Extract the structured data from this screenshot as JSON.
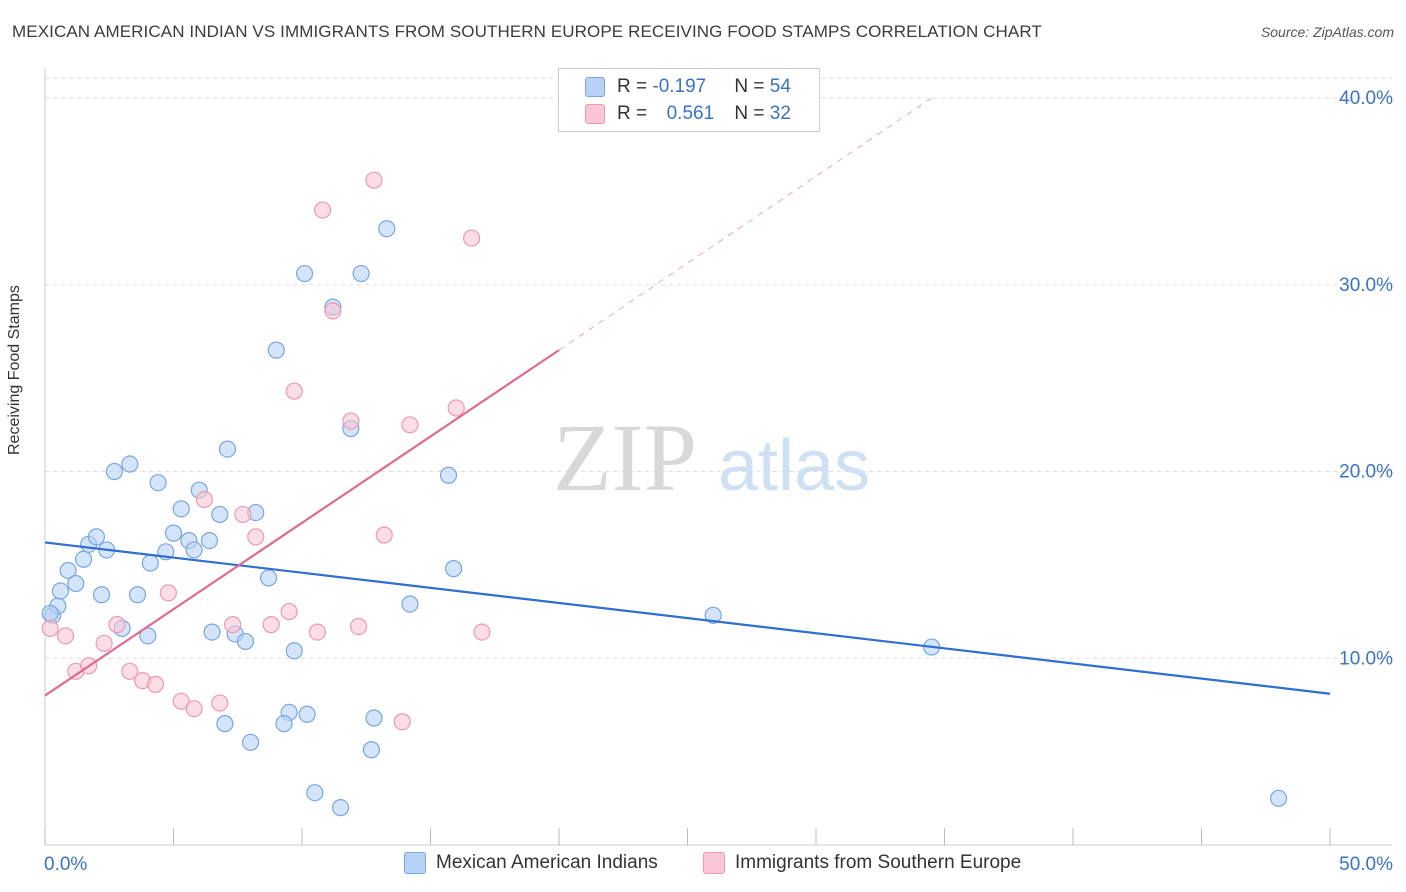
{
  "title": "MEXICAN AMERICAN INDIAN VS IMMIGRANTS FROM SOUTHERN EUROPE RECEIVING FOOD STAMPS CORRELATION CHART",
  "source": "Source: ZipAtlas.com",
  "watermark": {
    "zip": "ZIP",
    "atlas": "atlas"
  },
  "legend": {
    "series1": {
      "r_label": "R = ",
      "r_value": "-0.197",
      "n_label": "N = ",
      "n_value": "54"
    },
    "series2": {
      "r_label": "R = ",
      "r_value": "0.561",
      "n_label": "N = ",
      "n_value": "32"
    }
  },
  "colors": {
    "blue_fill": "#b8d2f5",
    "blue_stroke": "#7aa6e0",
    "blue_line": "#2f6fcf",
    "pink_fill": "#f8c6d4",
    "pink_stroke": "#ec9ab2",
    "pink_line": "#e06a92",
    "grid": "#dddddd",
    "tick_label": "#3a73c8"
  },
  "chart_data": {
    "type": "scatter",
    "xlabel": "",
    "ylabel": "Receiving Food Stamps",
    "xlim": [
      0,
      50
    ],
    "ylim": [
      0,
      40
    ],
    "x_tick_labels": [
      "0.0%",
      "50.0%"
    ],
    "y_ticks": [
      10,
      20,
      30,
      40
    ],
    "y_tick_labels": [
      "10.0%",
      "20.0%",
      "30.0%",
      "40.0%"
    ],
    "series": [
      {
        "name": "Mexican American Indians",
        "color": "blue",
        "points": [
          [
            0.3,
            12.3
          ],
          [
            0.5,
            12.8
          ],
          [
            0.6,
            13.6
          ],
          [
            0.9,
            14.7
          ],
          [
            1.2,
            14.0
          ],
          [
            1.5,
            15.3
          ],
          [
            1.7,
            16.1
          ],
          [
            2.0,
            16.5
          ],
          [
            2.2,
            13.4
          ],
          [
            2.4,
            15.8
          ],
          [
            2.7,
            20.0
          ],
          [
            3.0,
            11.6
          ],
          [
            3.3,
            20.4
          ],
          [
            3.6,
            13.4
          ],
          [
            4.0,
            11.2
          ],
          [
            4.1,
            15.1
          ],
          [
            4.4,
            19.4
          ],
          [
            4.7,
            15.7
          ],
          [
            5.0,
            16.7
          ],
          [
            5.3,
            18.0
          ],
          [
            5.6,
            16.3
          ],
          [
            5.8,
            15.8
          ],
          [
            6.0,
            19.0
          ],
          [
            6.4,
            16.3
          ],
          [
            6.5,
            11.4
          ],
          [
            6.8,
            17.7
          ],
          [
            7.1,
            21.2
          ],
          [
            7.4,
            11.3
          ],
          [
            7.8,
            10.9
          ],
          [
            8.2,
            17.8
          ],
          [
            8.7,
            14.3
          ],
          [
            9.0,
            26.5
          ],
          [
            9.7,
            10.4
          ],
          [
            10.1,
            30.6
          ],
          [
            9.5,
            7.1
          ],
          [
            10.5,
            2.8
          ],
          [
            11.2,
            28.8
          ],
          [
            11.9,
            22.3
          ],
          [
            12.3,
            30.6
          ],
          [
            12.8,
            6.8
          ],
          [
            13.3,
            33.0
          ],
          [
            14.2,
            12.9
          ],
          [
            15.7,
            19.8
          ],
          [
            15.9,
            14.8
          ],
          [
            7.0,
            6.5
          ],
          [
            8.0,
            5.5
          ],
          [
            9.3,
            6.5
          ],
          [
            10.2,
            7.0
          ],
          [
            11.5,
            2.0
          ],
          [
            12.7,
            5.1
          ],
          [
            26.0,
            12.3
          ],
          [
            34.5,
            10.6
          ],
          [
            48.0,
            2.5
          ],
          [
            0.2,
            12.4
          ]
        ]
      },
      {
        "name": "Immigrants from Southern Europe",
        "color": "pink",
        "points": [
          [
            0.2,
            11.6
          ],
          [
            0.8,
            11.2
          ],
          [
            1.2,
            9.3
          ],
          [
            1.7,
            9.6
          ],
          [
            2.3,
            10.8
          ],
          [
            2.8,
            11.8
          ],
          [
            3.3,
            9.3
          ],
          [
            3.8,
            8.8
          ],
          [
            4.3,
            8.6
          ],
          [
            4.8,
            13.5
          ],
          [
            5.3,
            7.7
          ],
          [
            5.8,
            7.3
          ],
          [
            6.2,
            18.5
          ],
          [
            6.8,
            7.6
          ],
          [
            7.3,
            11.8
          ],
          [
            7.7,
            17.7
          ],
          [
            8.2,
            16.5
          ],
          [
            8.8,
            11.8
          ],
          [
            9.5,
            12.5
          ],
          [
            9.7,
            24.3
          ],
          [
            10.6,
            11.4
          ],
          [
            10.8,
            34.0
          ],
          [
            11.2,
            28.6
          ],
          [
            11.9,
            22.7
          ],
          [
            12.2,
            11.7
          ],
          [
            12.8,
            35.6
          ],
          [
            13.2,
            16.6
          ],
          [
            13.9,
            6.6
          ],
          [
            14.2,
            22.5
          ],
          [
            16.0,
            23.4
          ],
          [
            16.6,
            32.5
          ],
          [
            17.0,
            11.4
          ]
        ]
      }
    ],
    "trend_lines": [
      {
        "series": "Mexican American Indians",
        "from": [
          0,
          16.2
        ],
        "to": [
          50,
          8.1
        ],
        "style": "solid"
      },
      {
        "series": "Immigrants from Southern Europe",
        "from": [
          0,
          8.0
        ],
        "to": [
          20,
          26.5
        ],
        "style": "solid"
      },
      {
        "series": "Immigrants from Southern Europe",
        "from": [
          20,
          26.5
        ],
        "to": [
          34.5,
          40.0
        ],
        "style": "dashed"
      }
    ]
  },
  "bottom_legend": {
    "series1_label": "Mexican American Indians",
    "series2_label": "Immigrants from Southern Europe"
  }
}
